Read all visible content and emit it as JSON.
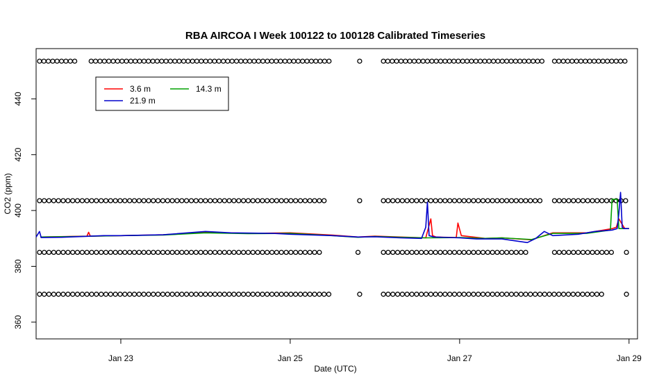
{
  "chart_data": {
    "type": "line",
    "title": "RBA AIRCOA I  Week 100122 to 100128  Calibrated Timeseries",
    "xlabel": "Date (UTC)",
    "ylabel": "CO2 (ppm)",
    "xlim": [
      22.0,
      29.1
    ],
    "ylim": [
      354,
      458
    ],
    "x_ticks": [
      {
        "value": 23,
        "label": "Jan 23"
      },
      {
        "value": 25,
        "label": "Jan 25"
      },
      {
        "value": 27,
        "label": "Jan 27"
      },
      {
        "value": 29,
        "label": "Jan 29"
      }
    ],
    "y_ticks": [
      {
        "value": 360,
        "label": "360"
      },
      {
        "value": 380,
        "label": "380"
      },
      {
        "value": 400,
        "label": "400"
      },
      {
        "value": 420,
        "label": "420"
      },
      {
        "value": 440,
        "label": "440"
      }
    ],
    "legend_position": "top-left",
    "series": [
      {
        "name": "3.6 m",
        "color": "#ff0000",
        "x": [
          22.05,
          22.6,
          22.62,
          22.64,
          23.0,
          23.5,
          24.0,
          24.5,
          25.0,
          25.5,
          25.8,
          26.0,
          26.3,
          26.6,
          26.66,
          26.68,
          26.72,
          26.96,
          26.98,
          27.02,
          27.3,
          27.5,
          27.85,
          28.1,
          28.5,
          28.7,
          28.8,
          28.85,
          28.88,
          28.92,
          28.95,
          29.0
        ],
        "y": [
          390.5,
          390.8,
          392.2,
          390.8,
          391.0,
          391.3,
          392.2,
          391.8,
          392.0,
          391.2,
          390.5,
          390.8,
          390.5,
          390.2,
          397.0,
          391.0,
          390.5,
          390.3,
          395.5,
          391.0,
          390.0,
          390.2,
          389.5,
          392.0,
          392.0,
          393.0,
          393.5,
          394.0,
          397.0,
          395.0,
          393.5,
          393.5
        ]
      },
      {
        "name": "14.3 m",
        "color": "#00a000",
        "x": [
          22.05,
          22.5,
          23.0,
          23.5,
          24.0,
          24.5,
          25.0,
          25.5,
          25.8,
          26.0,
          26.3,
          26.6,
          27.0,
          27.3,
          27.5,
          27.85,
          28.1,
          28.5,
          28.78,
          28.8,
          28.83,
          28.86,
          28.88,
          28.9,
          29.0
        ],
        "y": [
          390.5,
          390.7,
          391.0,
          391.2,
          392.0,
          391.7,
          391.8,
          391.0,
          390.4,
          390.7,
          390.4,
          390.2,
          390.3,
          390.0,
          390.2,
          389.6,
          391.8,
          391.8,
          393.0,
          404.0,
          404.0,
          404.0,
          393.5,
          393.5,
          393.5
        ]
      },
      {
        "name": "21.9 m",
        "color": "#0000cc",
        "x": [
          22.0,
          22.04,
          22.06,
          22.3,
          22.8,
          23.0,
          23.5,
          24.0,
          24.3,
          24.8,
          25.0,
          25.5,
          25.8,
          26.0,
          26.3,
          26.55,
          26.6,
          26.62,
          26.64,
          26.7,
          27.0,
          27.2,
          27.5,
          27.8,
          27.9,
          28.0,
          28.1,
          28.4,
          28.6,
          28.8,
          28.86,
          28.88,
          28.9,
          28.92,
          28.94,
          29.0
        ],
        "y": [
          390.5,
          392.5,
          390.3,
          390.4,
          391.0,
          391.0,
          391.3,
          392.5,
          392.0,
          391.8,
          391.5,
          391.0,
          390.5,
          390.6,
          390.2,
          390.0,
          394.0,
          403.0,
          391.0,
          390.5,
          390.2,
          389.8,
          389.8,
          388.5,
          390.0,
          392.5,
          391.0,
          391.5,
          392.5,
          393.0,
          393.5,
          399.0,
          406.5,
          394.0,
          393.5,
          393.5
        ]
      }
    ],
    "flag_markers": {
      "marker": "open-circle",
      "rows": [
        {
          "y": 453.5,
          "segments": [
            [
              22.04,
              22.5
            ],
            [
              22.65,
              25.5
            ],
            [
              25.82,
              25.82
            ],
            [
              26.1,
              28.0
            ],
            [
              28.12,
              29.0
            ]
          ],
          "step": 0.052
        },
        {
          "y": 403.5,
          "segments": [
            [
              22.04,
              25.4
            ],
            [
              25.82,
              25.85
            ],
            [
              26.1,
              28.0
            ],
            [
              28.12,
              29.0
            ]
          ],
          "step": 0.056
        },
        {
          "y": 385.0,
          "segments": [
            [
              22.04,
              25.35
            ],
            [
              25.8,
              25.83
            ],
            [
              26.1,
              27.8
            ],
            [
              28.12,
              28.8
            ],
            [
              28.97,
              28.97
            ]
          ],
          "step": 0.056
        },
        {
          "y": 370.0,
          "segments": [
            [
              22.04,
              25.5
            ],
            [
              25.82,
              25.82
            ],
            [
              26.1,
              28.72
            ],
            [
              28.97,
              28.97
            ]
          ],
          "step": 0.056
        }
      ]
    }
  }
}
